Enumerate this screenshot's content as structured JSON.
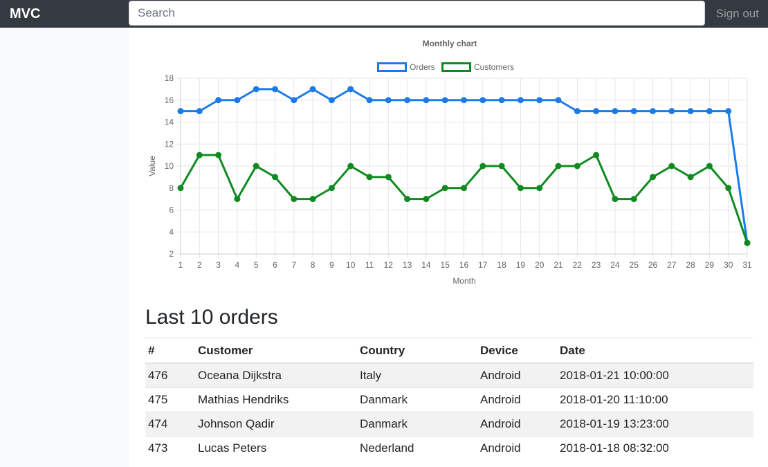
{
  "navbar": {
    "brand": "MVC",
    "search_placeholder": "Search",
    "signout": "Sign out"
  },
  "chart_data": {
    "type": "line",
    "title": "Monthly chart",
    "xlabel": "Month",
    "ylabel": "Value",
    "x": [
      1,
      2,
      3,
      4,
      5,
      6,
      7,
      8,
      9,
      10,
      11,
      12,
      13,
      14,
      15,
      16,
      17,
      18,
      19,
      20,
      21,
      22,
      23,
      24,
      25,
      26,
      27,
      28,
      29,
      30,
      31
    ],
    "ylim": [
      2,
      18
    ],
    "yticks": [
      2,
      4,
      6,
      8,
      10,
      12,
      14,
      16,
      18
    ],
    "grid": true,
    "legend": "top",
    "series": [
      {
        "name": "Orders",
        "color": "#1a7be8",
        "values": [
          15,
          15,
          16,
          16,
          17,
          17,
          16,
          17,
          16,
          17,
          16,
          16,
          16,
          16,
          16,
          16,
          16,
          16,
          16,
          16,
          16,
          15,
          15,
          15,
          15,
          15,
          15,
          15,
          15,
          15,
          3
        ]
      },
      {
        "name": "Customers",
        "color": "#0f8a1f",
        "values": [
          8,
          11,
          11,
          7,
          10,
          9,
          7,
          7,
          8,
          10,
          9,
          9,
          7,
          7,
          8,
          8,
          10,
          10,
          8,
          8,
          10,
          10,
          11,
          7,
          7,
          9,
          10,
          9,
          10,
          8,
          3
        ]
      }
    ]
  },
  "orders": {
    "title": "Last 10 orders",
    "columns": [
      "#",
      "Customer",
      "Country",
      "Device",
      "Date"
    ],
    "rows": [
      [
        "476",
        "Oceana Dijkstra",
        "Italy",
        "Android",
        "2018-01-21 10:00:00"
      ],
      [
        "475",
        "Mathias Hendriks",
        "Danmark",
        "Android",
        "2018-01-20 11:10:00"
      ],
      [
        "474",
        "Johnson Qadir",
        "Danmark",
        "Android",
        "2018-01-19 13:23:00"
      ],
      [
        "473",
        "Lucas Peters",
        "Nederland",
        "Android",
        "2018-01-18 08:32:00"
      ]
    ]
  }
}
